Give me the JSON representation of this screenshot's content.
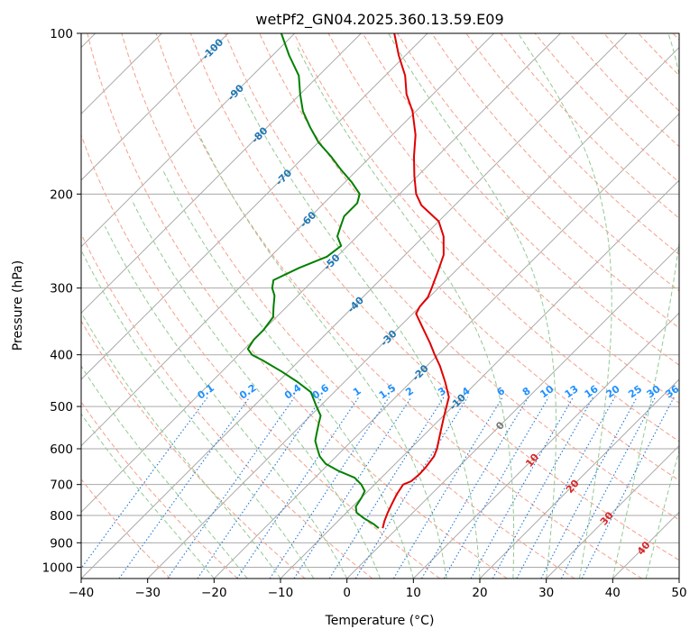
{
  "chart_data": {
    "type": "line",
    "title": "wetPf2_GN04.2025.360.13.59.E09",
    "xlabel": "Temperature (°C)",
    "ylabel": "Pressure (hPa)",
    "xlim": [
      -40,
      50
    ],
    "ylim": [
      1050,
      100
    ],
    "x_ticks": [
      -40,
      -30,
      -20,
      -10,
      0,
      10,
      20,
      30,
      40,
      50
    ],
    "x_tick_labels": [
      "−40",
      "−30",
      "−20",
      "−10",
      "0",
      "10",
      "20",
      "30",
      "40",
      "50"
    ],
    "y_ticks": [
      100,
      200,
      300,
      400,
      500,
      600,
      700,
      800,
      900,
      1000
    ],
    "y_tick_labels": [
      "100",
      "200",
      "300",
      "400",
      "500",
      "600",
      "700",
      "800",
      "900",
      "1000"
    ],
    "skew_note": "Skewed temperature axis: isotherms run 45 degrees up to the right",
    "isotherm_values": [
      -170,
      -160,
      -150,
      -140,
      -130,
      -120,
      -110,
      -100,
      -90,
      -80,
      -70,
      -60,
      -50,
      -40,
      -30,
      -20,
      -10,
      0,
      10,
      20,
      30,
      40,
      50
    ],
    "dry_adiabat_labels": [
      {
        "label": "-100",
        "t": -100,
        "p": 107
      },
      {
        "label": "-90",
        "t": -90,
        "p": 129
      },
      {
        "label": "-80",
        "t": -80,
        "p": 155
      },
      {
        "label": "-70",
        "t": -70,
        "p": 186
      },
      {
        "label": "-60",
        "t": -60,
        "p": 223
      },
      {
        "label": "-50",
        "t": -50,
        "p": 268
      },
      {
        "label": "-40",
        "t": -40,
        "p": 322
      },
      {
        "label": "-30",
        "t": -30,
        "p": 372
      },
      {
        "label": "-20",
        "t": -20,
        "p": 432
      },
      {
        "label": "-10",
        "t": -10,
        "p": 490
      }
    ],
    "moist_adiabat_labels": [
      {
        "label": "0",
        "t": 0,
        "p": 543
      },
      {
        "label": "10",
        "t": 10,
        "p": 630
      },
      {
        "label": "20",
        "t": 20,
        "p": 705
      },
      {
        "label": "30",
        "t": 30,
        "p": 810
      },
      {
        "label": "40",
        "t": 40,
        "p": 920
      }
    ],
    "mixing_ratio_labels": [
      "0.1",
      "0.2",
      "0.4",
      "0.6",
      "1",
      "1.5",
      "2",
      "3",
      "4",
      "6",
      "8",
      "10",
      "13",
      "16",
      "20",
      "25",
      "30",
      "36"
    ],
    "mixing_ratio_label_pressure": 480,
    "series": [
      {
        "name": "Temperature",
        "color": "#e00000",
        "points": [
          [
            845,
            -2.2
          ],
          [
            820,
            -3.0
          ],
          [
            790,
            -3.8
          ],
          [
            760,
            -4.5
          ],
          [
            730,
            -5.2
          ],
          [
            700,
            -5.7
          ],
          [
            690,
            -5.0
          ],
          [
            670,
            -4.8
          ],
          [
            650,
            -4.9
          ],
          [
            620,
            -5.3
          ],
          [
            600,
            -6.0
          ],
          [
            560,
            -7.9
          ],
          [
            520,
            -9.9
          ],
          [
            480,
            -12.0
          ],
          [
            450,
            -14.8
          ],
          [
            420,
            -18.0
          ],
          [
            400,
            -20.5
          ],
          [
            380,
            -23.0
          ],
          [
            360,
            -25.8
          ],
          [
            345,
            -28.0
          ],
          [
            335,
            -29.5
          ],
          [
            325,
            -30.0
          ],
          [
            312,
            -30.2
          ],
          [
            300,
            -31.0
          ],
          [
            280,
            -32.5
          ],
          [
            260,
            -34.2
          ],
          [
            240,
            -37.0
          ],
          [
            225,
            -40.0
          ],
          [
            210,
            -45.0
          ],
          [
            200,
            -47.5
          ],
          [
            185,
            -50.5
          ],
          [
            170,
            -53.5
          ],
          [
            155,
            -56.5
          ],
          [
            140,
            -60.5
          ],
          [
            130,
            -64.0
          ],
          [
            120,
            -67.0
          ],
          [
            110,
            -71.0
          ],
          [
            100,
            -75.0
          ]
        ]
      },
      {
        "name": "Dewpoint",
        "color": "#008000",
        "points": [
          [
            845,
            -2.8
          ],
          [
            830,
            -4.2
          ],
          [
            810,
            -6.5
          ],
          [
            790,
            -8.5
          ],
          [
            770,
            -9.5
          ],
          [
            740,
            -10.0
          ],
          [
            720,
            -10.5
          ],
          [
            700,
            -12.0
          ],
          [
            680,
            -14.0
          ],
          [
            660,
            -17.5
          ],
          [
            640,
            -20.5
          ],
          [
            620,
            -22.5
          ],
          [
            600,
            -24.0
          ],
          [
            580,
            -25.5
          ],
          [
            560,
            -26.5
          ],
          [
            540,
            -27.5
          ],
          [
            520,
            -28.5
          ],
          [
            500,
            -30.5
          ],
          [
            470,
            -33.5
          ],
          [
            450,
            -37.0
          ],
          [
            430,
            -41.0
          ],
          [
            410,
            -45.5
          ],
          [
            400,
            -48.0
          ],
          [
            390,
            -49.5
          ],
          [
            375,
            -50.0
          ],
          [
            360,
            -50.0
          ],
          [
            340,
            -50.5
          ],
          [
            325,
            -52.0
          ],
          [
            310,
            -53.5
          ],
          [
            300,
            -55.0
          ],
          [
            290,
            -56.0
          ],
          [
            275,
            -54.0
          ],
          [
            262,
            -51.5
          ],
          [
            250,
            -51.0
          ],
          [
            240,
            -53.0
          ],
          [
            230,
            -54.0
          ],
          [
            220,
            -55.0
          ],
          [
            208,
            -55.0
          ],
          [
            200,
            -56.0
          ],
          [
            190,
            -59.0
          ],
          [
            180,
            -62.5
          ],
          [
            170,
            -66.0
          ],
          [
            160,
            -70.0
          ],
          [
            150,
            -73.5
          ],
          [
            140,
            -77.0
          ],
          [
            130,
            -80.0
          ],
          [
            120,
            -83.0
          ],
          [
            110,
            -87.5
          ],
          [
            100,
            -92.0
          ]
        ]
      }
    ],
    "colors": {
      "dry_adiabat": "#f4a08a",
      "moist_adiabat": "#93c993",
      "mixing_ratio": "#1f77d4",
      "isotherm": "#aaaaaa",
      "isobar": "#aaaaaa",
      "dry_label": "#1f77b4",
      "moist_label": "#d62728",
      "moist_label_zero": "#777777",
      "mixing_label": "#1e90ff"
    }
  }
}
